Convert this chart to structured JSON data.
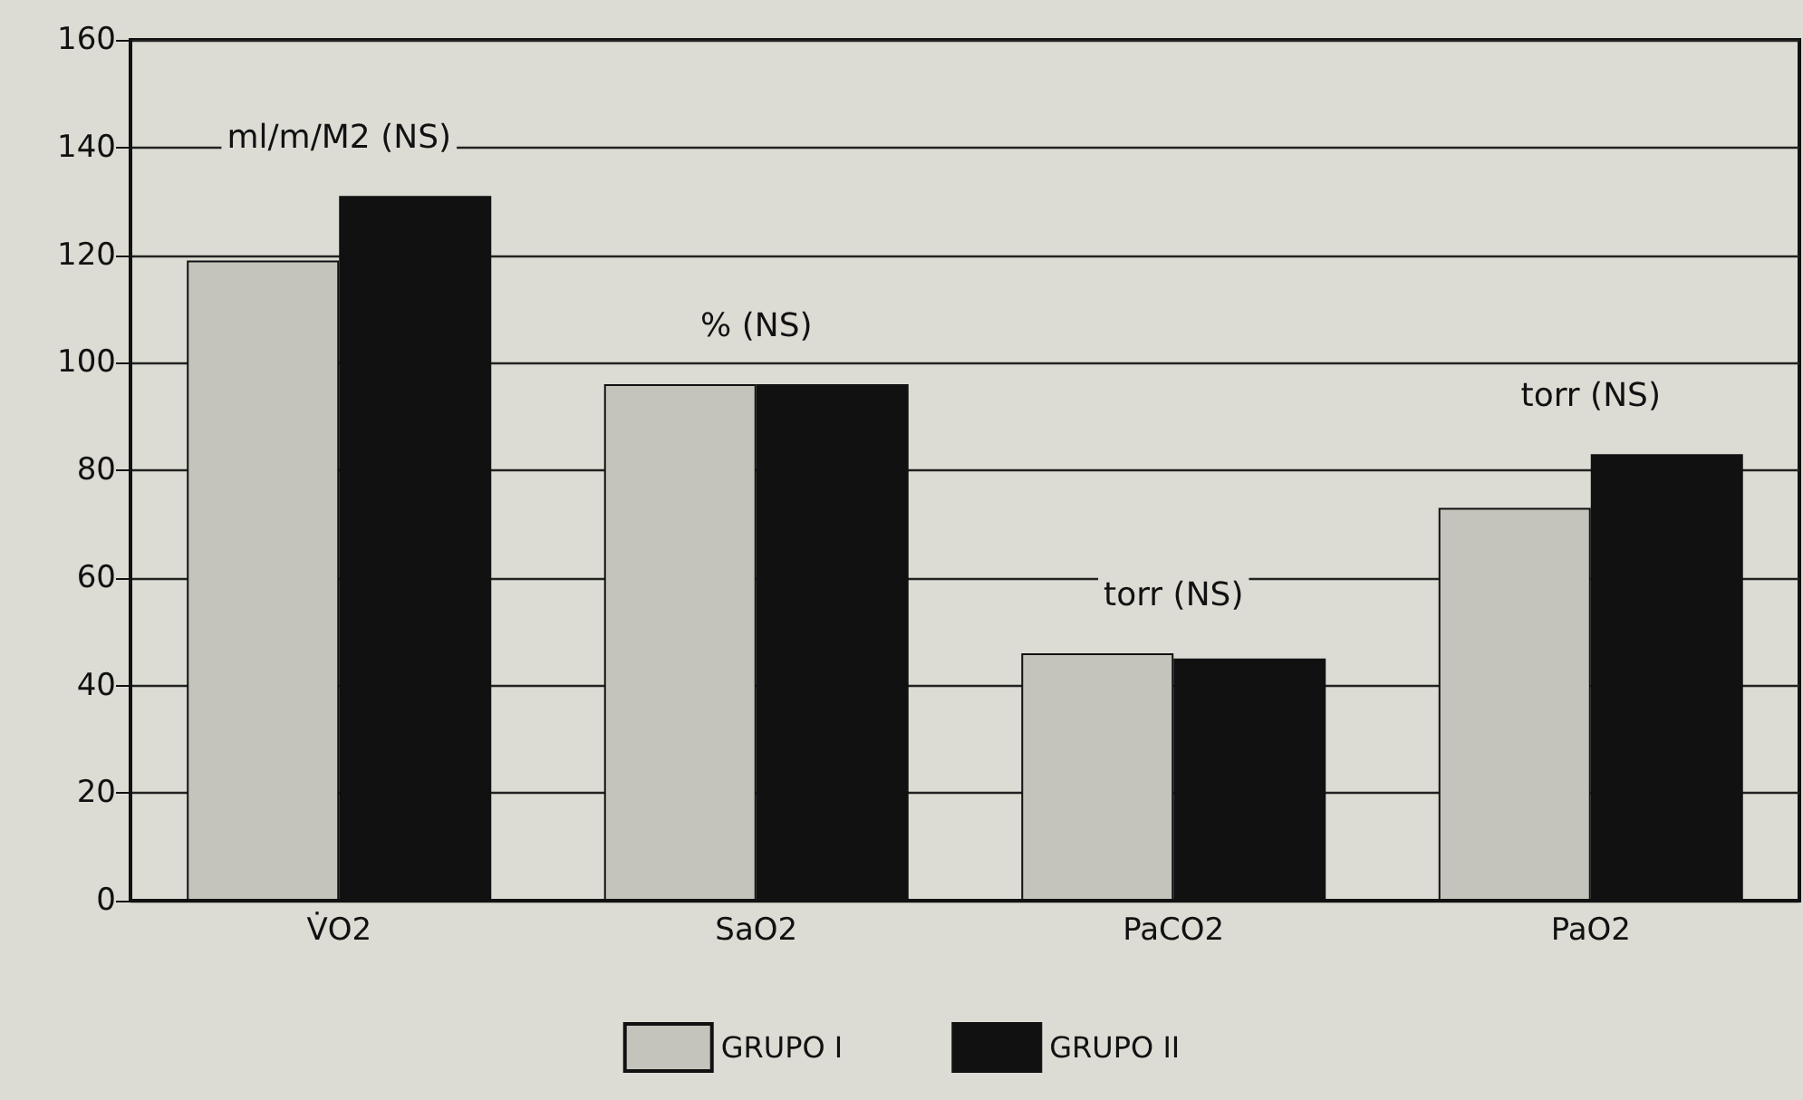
{
  "chart_data": {
    "type": "bar",
    "categories": [
      "V̇O2",
      "SaO2",
      "PaCO2",
      "PaO2"
    ],
    "series": [
      {
        "name": "GRUPO I",
        "color": "#c4c4bc",
        "values": [
          119,
          96,
          46,
          73
        ]
      },
      {
        "name": "GRUPO II",
        "color": "#111111",
        "values": [
          131,
          96,
          45,
          83
        ]
      }
    ],
    "ylim": [
      0,
      160
    ],
    "yticks": [
      0,
      20,
      40,
      60,
      80,
      100,
      120,
      140,
      160
    ],
    "grid": "y",
    "legend": "bottom",
    "annotations": [
      "ml/m/M2 (NS)",
      "% (NS)",
      "torr (NS)",
      "torr (NS)"
    ]
  }
}
